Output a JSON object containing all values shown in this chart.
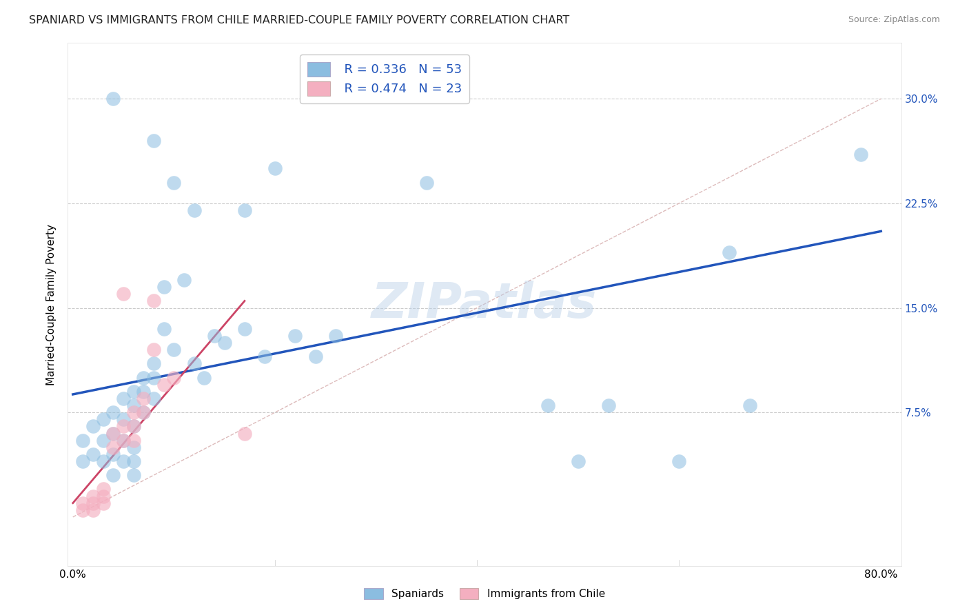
{
  "title": "SPANIARD VS IMMIGRANTS FROM CHILE MARRIED-COUPLE FAMILY POVERTY CORRELATION CHART",
  "source": "Source: ZipAtlas.com",
  "ylabel": "Married-Couple Family Poverty",
  "xlim": [
    -0.005,
    0.82
  ],
  "ylim": [
    -0.035,
    0.34
  ],
  "ytick_vals": [
    0.0,
    0.075,
    0.15,
    0.225,
    0.3
  ],
  "ytick_labels": [
    "",
    "7.5%",
    "15.0%",
    "22.5%",
    "30.0%"
  ],
  "xtick_vals": [
    0.0,
    0.2,
    0.4,
    0.6,
    0.8
  ],
  "xtick_labels": [
    "0.0%",
    "",
    "",
    "",
    "80.0%"
  ],
  "watermark": "ZIPatlas",
  "legend_r1": "R = 0.336",
  "legend_n1": "N = 53",
  "legend_r2": "R = 0.474",
  "legend_n2": "N = 23",
  "spaniards_color": "#8bbde0",
  "chile_color": "#f4afc0",
  "regression_blue": "#2255bb",
  "regression_pink": "#cc4466",
  "diag_color": "#ddbbbb",
  "background_color": "#ffffff",
  "grid_color": "#cccccc",
  "blue_line_x0": 0.0,
  "blue_line_y0": 0.088,
  "blue_line_x1": 0.8,
  "blue_line_y1": 0.205,
  "pink_line_x0": 0.0,
  "pink_line_y0": 0.01,
  "pink_line_x1": 0.17,
  "pink_line_y1": 0.155,
  "blue_x": [
    0.01,
    0.01,
    0.02,
    0.02,
    0.03,
    0.03,
    0.03,
    0.04,
    0.04,
    0.04,
    0.04,
    0.05,
    0.05,
    0.05,
    0.05,
    0.06,
    0.06,
    0.06,
    0.06,
    0.06,
    0.06,
    0.07,
    0.07,
    0.07,
    0.08,
    0.08,
    0.08,
    0.09,
    0.09,
    0.1,
    0.11,
    0.12,
    0.13,
    0.14,
    0.15,
    0.17,
    0.19,
    0.22,
    0.24,
    0.26,
    0.35,
    0.47,
    0.5,
    0.53,
    0.6,
    0.65,
    0.67,
    0.78
  ],
  "blue_y": [
    0.055,
    0.04,
    0.065,
    0.045,
    0.07,
    0.055,
    0.04,
    0.075,
    0.06,
    0.045,
    0.03,
    0.085,
    0.07,
    0.055,
    0.04,
    0.09,
    0.08,
    0.065,
    0.05,
    0.04,
    0.03,
    0.1,
    0.09,
    0.075,
    0.11,
    0.1,
    0.085,
    0.165,
    0.135,
    0.12,
    0.17,
    0.11,
    0.1,
    0.13,
    0.125,
    0.135,
    0.115,
    0.13,
    0.115,
    0.13,
    0.24,
    0.08,
    0.04,
    0.08,
    0.04,
    0.19,
    0.08,
    0.26
  ],
  "blue_x2": [
    0.04,
    0.08,
    0.1,
    0.12,
    0.17,
    0.2
  ],
  "blue_y2": [
    0.3,
    0.27,
    0.24,
    0.22,
    0.22,
    0.25
  ],
  "pink_x": [
    0.01,
    0.01,
    0.02,
    0.02,
    0.02,
    0.03,
    0.03,
    0.03,
    0.04,
    0.04,
    0.05,
    0.05,
    0.06,
    0.06,
    0.06,
    0.07,
    0.07,
    0.08,
    0.08,
    0.09,
    0.1,
    0.17,
    0.05
  ],
  "pink_y": [
    0.01,
    0.005,
    0.01,
    0.005,
    0.015,
    0.02,
    0.015,
    0.01,
    0.06,
    0.05,
    0.065,
    0.055,
    0.075,
    0.065,
    0.055,
    0.085,
    0.075,
    0.155,
    0.12,
    0.095,
    0.1,
    0.06,
    0.16
  ]
}
